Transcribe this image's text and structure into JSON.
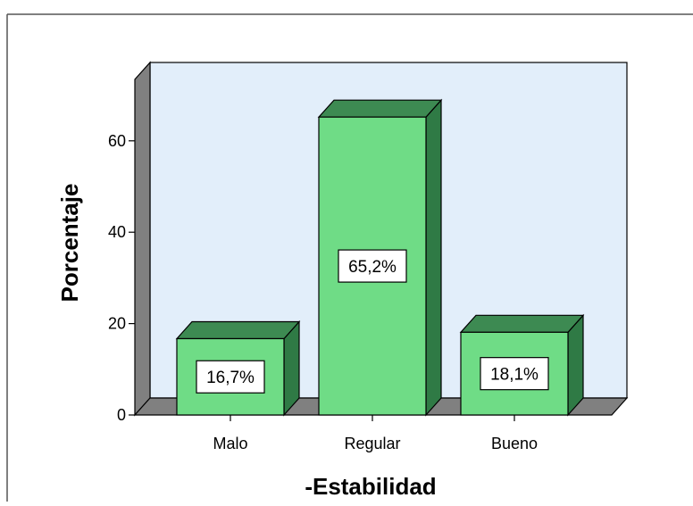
{
  "chart_data": {
    "type": "bar",
    "categories": [
      "Malo",
      "Regular",
      "Bueno"
    ],
    "values": [
      16.7,
      65.2,
      18.1
    ],
    "data_labels": [
      "16,7%",
      "65,2%",
      "18,1%"
    ],
    "xlabel": "-Estabilidad",
    "ylabel": "Porcentaje",
    "ylim": [
      0,
      75
    ],
    "yticks": [
      0,
      20,
      40,
      60
    ],
    "ytick_labels": [
      "0",
      "20",
      "40",
      "60"
    ],
    "style": "3d",
    "grid": false,
    "colors": {
      "bar_front": "#6fdc86",
      "bar_top": "#3d8a52",
      "bar_side": "#2f7a45",
      "plot_background": "#e2eefa",
      "floor": "#808080",
      "left_wall": "#808080"
    }
  }
}
